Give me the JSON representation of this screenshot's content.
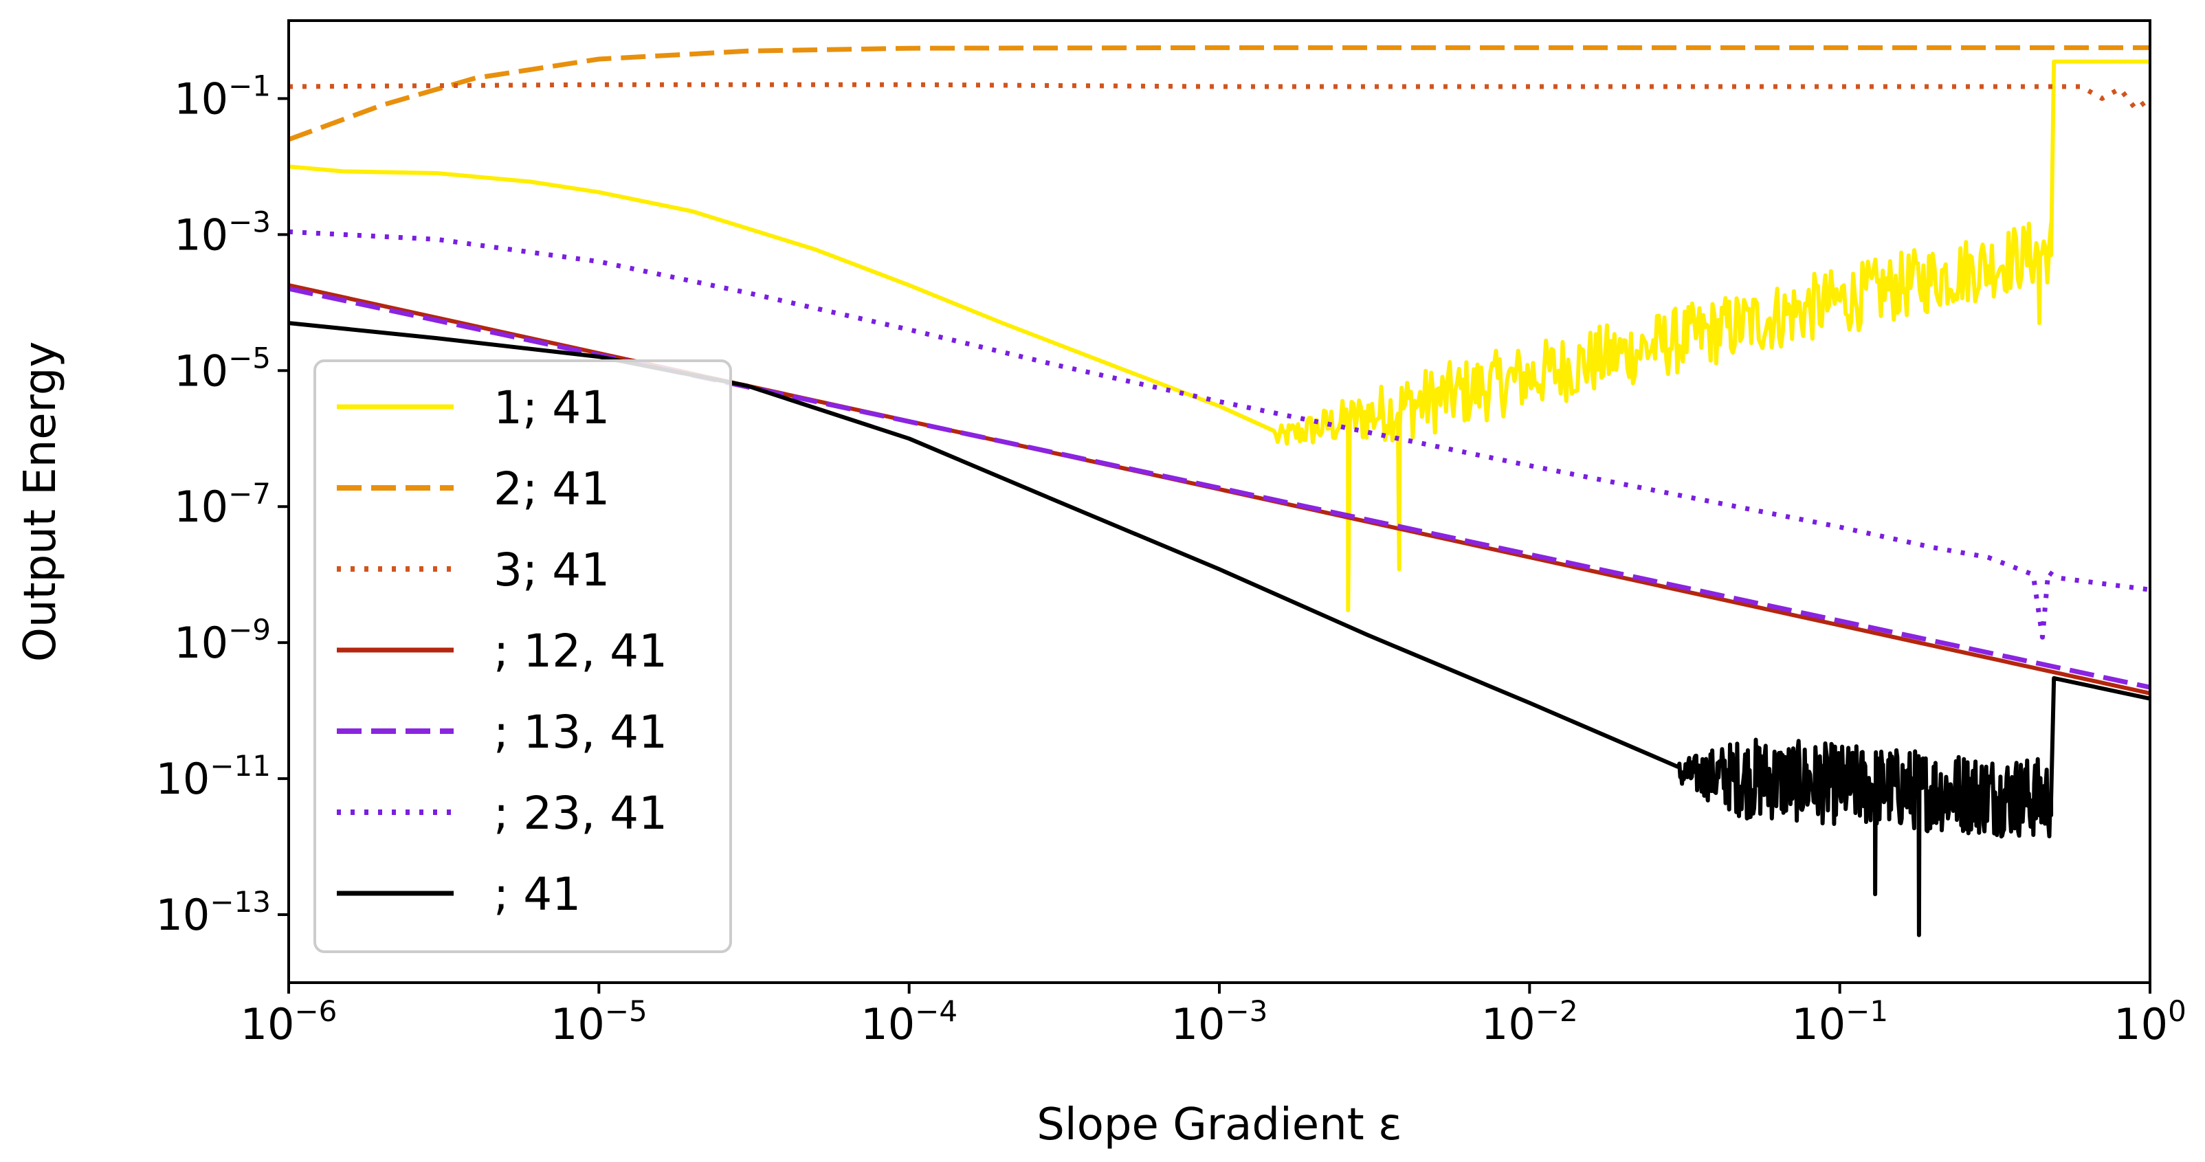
{
  "chart_data": {
    "type": "line",
    "title": "",
    "xlabel": "Slope Gradient ε",
    "ylabel": "Output Energy",
    "xscale": "log",
    "yscale": "log",
    "xlim": [
      1e-06,
      1
    ],
    "ylim": [
      1e-14,
      1.4
    ],
    "x_ticks": [
      {
        "value": 1e-06,
        "base": "10",
        "exp": "−6"
      },
      {
        "value": 1e-05,
        "base": "10",
        "exp": "−5"
      },
      {
        "value": 0.0001,
        "base": "10",
        "exp": "−4"
      },
      {
        "value": 0.001,
        "base": "10",
        "exp": "−3"
      },
      {
        "value": 0.01,
        "base": "10",
        "exp": "−2"
      },
      {
        "value": 0.1,
        "base": "10",
        "exp": "−1"
      },
      {
        "value": 1,
        "base": "10",
        "exp": "0"
      }
    ],
    "y_ticks": [
      {
        "value": 0.1,
        "base": "10",
        "exp": "−1"
      },
      {
        "value": 0.001,
        "base": "10",
        "exp": "−3"
      },
      {
        "value": 1e-05,
        "base": "10",
        "exp": "−5"
      },
      {
        "value": 1e-07,
        "base": "10",
        "exp": "−7"
      },
      {
        "value": 1e-09,
        "base": "10",
        "exp": "−9"
      },
      {
        "value": 1e-11,
        "base": "10",
        "exp": "−11"
      },
      {
        "value": 1e-13,
        "base": "10",
        "exp": "−13"
      }
    ],
    "legend_position": "lower-left",
    "series": [
      {
        "name": "1; 41",
        "color": "#ffee00",
        "style": "solid",
        "points": [
          [
            1e-06,
            0.01
          ],
          [
            1.5e-06,
            0.0085
          ],
          [
            3e-06,
            0.008
          ],
          [
            6e-06,
            0.006
          ],
          [
            1e-05,
            0.0042
          ],
          [
            2e-05,
            0.0022
          ],
          [
            5e-05,
            0.0006
          ],
          [
            0.0001,
            0.00018
          ],
          [
            0.0002,
            5e-05
          ],
          [
            0.0005,
            1e-05
          ],
          [
            0.001,
            3e-06
          ],
          [
            0.0015,
            1.3e-06
          ]
        ],
        "noise": {
          "from": 0.0015,
          "to": 0.48,
          "start_level": 1e-06,
          "end_level": 0.0006,
          "amplitude": 0.5,
          "dips": [
            [
              0.0026,
              3e-09
            ],
            [
              0.0038,
              1.2e-08
            ],
            [
              0.44,
              5e-05
            ]
          ]
        },
        "tail": [
          [
            0.48,
            0.0005
          ],
          [
            0.49,
            0.35
          ],
          [
            1,
            0.35
          ]
        ]
      },
      {
        "name": "2; 41",
        "color": "#e8900c",
        "style": "dashed",
        "points": [
          [
            1e-06,
            0.025
          ],
          [
            2e-06,
            0.08
          ],
          [
            4e-06,
            0.2
          ],
          [
            1e-05,
            0.38
          ],
          [
            3e-05,
            0.5
          ],
          [
            0.0001,
            0.55
          ],
          [
            0.001,
            0.56
          ],
          [
            0.01,
            0.56
          ],
          [
            0.1,
            0.56
          ],
          [
            1,
            0.56
          ]
        ]
      },
      {
        "name": "3; 41",
        "color": "#d2541c",
        "style": "dotted",
        "points": [
          [
            1e-06,
            0.15
          ],
          [
            1e-05,
            0.16
          ],
          [
            0.0001,
            0.16
          ],
          [
            0.001,
            0.15
          ],
          [
            0.01,
            0.15
          ],
          [
            0.1,
            0.15
          ],
          [
            0.6,
            0.15
          ],
          [
            0.7,
            0.1
          ],
          [
            0.8,
            0.14
          ],
          [
            0.9,
            0.07
          ],
          [
            1,
            0.1
          ]
        ]
      },
      {
        "name": "; 12, 41",
        "color": "#b5260e",
        "style": "solid",
        "points": [
          [
            1e-06,
            0.00018
          ],
          [
            1,
            1.8e-10
          ]
        ]
      },
      {
        "name": "; 13, 41",
        "color": "#8a24e0",
        "style": "dashed",
        "points": [
          [
            1e-06,
            0.00016
          ],
          [
            1,
            2.2e-10
          ]
        ]
      },
      {
        "name": "; 23, 41",
        "color": "#7a1ee0",
        "style": "dotted",
        "points": [
          [
            1e-06,
            0.0011
          ],
          [
            3e-06,
            0.00085
          ],
          [
            1e-05,
            0.0004
          ],
          [
            3e-05,
            0.00014
          ],
          [
            0.0001,
            4e-05
          ],
          [
            0.0003,
            1.2e-05
          ],
          [
            0.001,
            3.5e-06
          ],
          [
            0.01,
            4e-07
          ],
          [
            0.1,
            5e-08
          ],
          [
            0.2,
            2.5e-08
          ],
          [
            0.3,
            1.8e-08
          ],
          [
            0.42,
            1e-08
          ],
          [
            0.45,
            1.2e-09
          ],
          [
            0.47,
            1.1e-08
          ],
          [
            0.5,
            9e-09
          ],
          [
            1,
            6e-09
          ]
        ]
      },
      {
        "name": "; 41",
        "color": "#000000",
        "style": "solid",
        "points": [
          [
            1e-06,
            5e-05
          ],
          [
            3e-06,
            3e-05
          ],
          [
            1e-05,
            1.6e-05
          ],
          [
            3e-05,
            6e-06
          ],
          [
            0.0001,
            1e-06
          ],
          [
            0.0003,
            1.2e-07
          ],
          [
            0.001,
            1.2e-08
          ],
          [
            0.003,
            1.3e-09
          ],
          [
            0.01,
            1.3e-10
          ],
          [
            0.03,
            1.5e-11
          ]
        ],
        "noise": {
          "from": 0.03,
          "to": 0.48,
          "start_level": 1.2e-11,
          "end_level": 5e-12,
          "amplitude": 0.6,
          "dips": [
            [
              0.18,
              5e-14
            ],
            [
              0.13,
              2e-13
            ]
          ]
        },
        "tail": [
          [
            0.48,
            5e-12
          ],
          [
            0.49,
            3e-10
          ],
          [
            1,
            1.5e-10
          ]
        ]
      }
    ]
  }
}
